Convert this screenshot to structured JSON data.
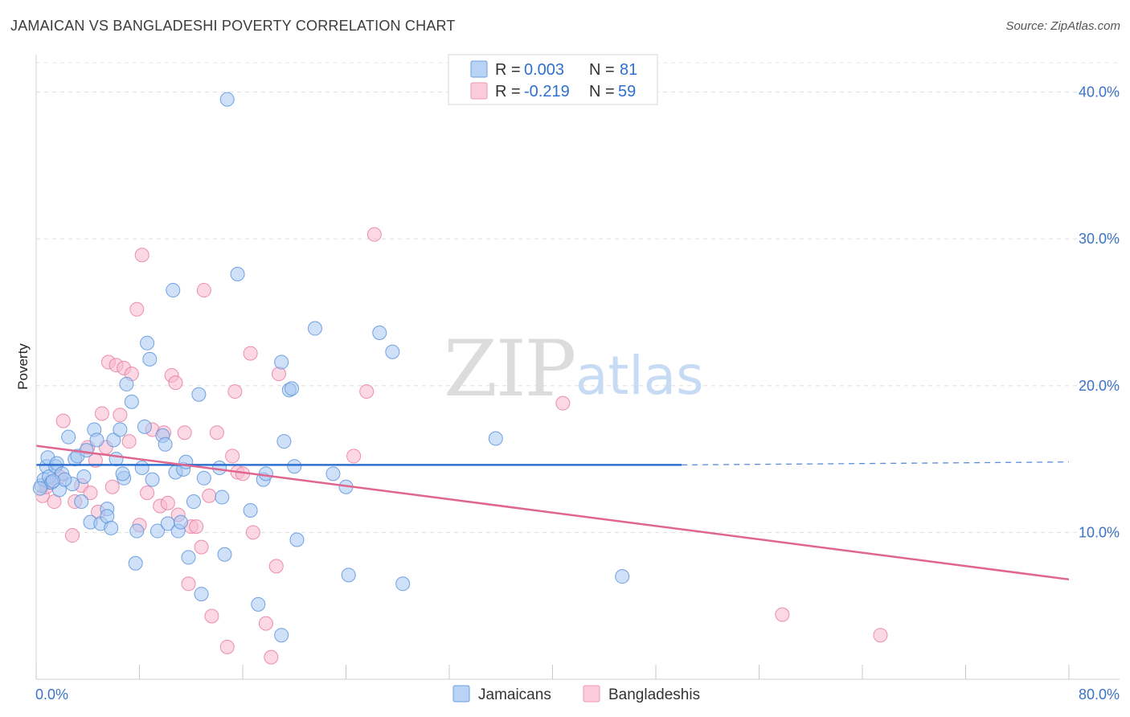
{
  "title": "JAMAICAN VS BANGLADESHI POVERTY CORRELATION CHART",
  "source": "Source: ZipAtlas.com",
  "watermark": {
    "zip": "ZIP",
    "atlas": "atlas"
  },
  "legend": {
    "rows": [
      {
        "r_label": "R =",
        "r_value": "0.003",
        "n_label": "N =",
        "n_value": "81",
        "color": "#a7c8f2"
      },
      {
        "r_label": "R =",
        "r_value": "-0.219",
        "n_label": "N =",
        "n_value": "59",
        "color": "#f8b8cd"
      }
    ]
  },
  "bottom_legend": [
    {
      "label": "Jamaicans",
      "color": "#a7c8f2"
    },
    {
      "label": "Bangladeshis",
      "color": "#f8b8cd"
    }
  ],
  "chart_data": {
    "type": "scatter",
    "title": "JAMAICAN VS BANGLADESHI POVERTY CORRELATION CHART",
    "xlabel": "",
    "ylabel": "Poverty",
    "xlim": [
      0,
      80
    ],
    "ylim": [
      0,
      42
    ],
    "x_tick_labels": [
      "0.0%",
      "80.0%"
    ],
    "y_ticks": [
      10,
      20,
      30,
      40
    ],
    "y_tick_labels": [
      "10.0%",
      "20.0%",
      "30.0%",
      "40.0%"
    ],
    "grid": true,
    "legend_position": "top-center",
    "series": [
      {
        "name": "Jamaicans",
        "color": "#5b93dc",
        "fill": "#a7c8f2",
        "trend": {
          "x0": 0,
          "y0": 14.6,
          "x1": 50,
          "y1": 14.6,
          "dashed_to_x": 80,
          "dashed_y": 14.8,
          "color": "#2f6fd0"
        },
        "points": [
          [
            0.4,
            13.2
          ],
          [
            0.6,
            13.6
          ],
          [
            0.8,
            14.5
          ],
          [
            0.9,
            15.1
          ],
          [
            1.0,
            13.8
          ],
          [
            1.2,
            13.4
          ],
          [
            1.5,
            14.5
          ],
          [
            1.6,
            14.7
          ],
          [
            1.8,
            12.9
          ],
          [
            2.0,
            14.0
          ],
          [
            2.5,
            16.5
          ],
          [
            2.8,
            13.3
          ],
          [
            3.0,
            15.0
          ],
          [
            3.2,
            15.2
          ],
          [
            3.5,
            12.1
          ],
          [
            3.7,
            13.8
          ],
          [
            3.9,
            15.6
          ],
          [
            4.2,
            10.7
          ],
          [
            4.5,
            17.0
          ],
          [
            4.7,
            16.3
          ],
          [
            5.0,
            10.6
          ],
          [
            5.5,
            11.6
          ],
          [
            5.5,
            11.1
          ],
          [
            5.8,
            10.3
          ],
          [
            6.0,
            16.3
          ],
          [
            6.2,
            15.0
          ],
          [
            6.5,
            17.0
          ],
          [
            6.8,
            13.7
          ],
          [
            7.0,
            20.1
          ],
          [
            7.4,
            18.9
          ],
          [
            7.7,
            7.9
          ],
          [
            7.8,
            10.1
          ],
          [
            8.2,
            14.4
          ],
          [
            8.4,
            17.2
          ],
          [
            8.6,
            22.9
          ],
          [
            8.8,
            21.8
          ],
          [
            9.0,
            13.6
          ],
          [
            9.4,
            10.1
          ],
          [
            9.8,
            16.6
          ],
          [
            10.0,
            16.0
          ],
          [
            10.2,
            10.6
          ],
          [
            10.6,
            26.5
          ],
          [
            10.8,
            14.1
          ],
          [
            11.0,
            10.1
          ],
          [
            11.2,
            10.7
          ],
          [
            11.4,
            14.3
          ],
          [
            11.6,
            14.8
          ],
          [
            11.8,
            8.3
          ],
          [
            12.2,
            12.1
          ],
          [
            12.6,
            19.4
          ],
          [
            12.8,
            5.8
          ],
          [
            13.0,
            13.7
          ],
          [
            14.2,
            14.4
          ],
          [
            14.4,
            12.4
          ],
          [
            14.6,
            8.5
          ],
          [
            14.8,
            39.5
          ],
          [
            15.6,
            27.6
          ],
          [
            16.6,
            11.5
          ],
          [
            17.2,
            5.1
          ],
          [
            17.6,
            13.6
          ],
          [
            17.8,
            14.0
          ],
          [
            19.0,
            21.6
          ],
          [
            19.2,
            16.2
          ],
          [
            19.6,
            19.7
          ],
          [
            19.8,
            19.8
          ],
          [
            20.0,
            14.5
          ],
          [
            20.2,
            9.5
          ],
          [
            19.0,
            3.0
          ],
          [
            21.6,
            23.9
          ],
          [
            23.0,
            14.0
          ],
          [
            24.0,
            13.1
          ],
          [
            24.2,
            7.1
          ],
          [
            26.6,
            23.6
          ],
          [
            27.6,
            22.3
          ],
          [
            28.4,
            6.5
          ],
          [
            35.6,
            16.4
          ],
          [
            45.4,
            7.0
          ],
          [
            2.2,
            13.6
          ],
          [
            1.3,
            13.5
          ],
          [
            6.7,
            14.0
          ],
          [
            0.3,
            13.0
          ]
        ]
      },
      {
        "name": "Bangladeshis",
        "color": "#e97ca1",
        "fill": "#f8b8cd",
        "trend": {
          "x0": 0,
          "y0": 15.9,
          "x1": 80,
          "y1": 6.8,
          "color": "#e0668f"
        },
        "points": [
          [
            0.5,
            12.5
          ],
          [
            0.8,
            13.1
          ],
          [
            1.0,
            13.4
          ],
          [
            1.4,
            12.1
          ],
          [
            1.8,
            13.8
          ],
          [
            2.1,
            17.6
          ],
          [
            2.8,
            9.8
          ],
          [
            3.0,
            12.1
          ],
          [
            3.5,
            13.2
          ],
          [
            4.0,
            15.8
          ],
          [
            4.2,
            12.7
          ],
          [
            4.6,
            14.9
          ],
          [
            4.8,
            11.4
          ],
          [
            5.1,
            18.1
          ],
          [
            5.4,
            15.8
          ],
          [
            5.6,
            21.6
          ],
          [
            5.9,
            13.1
          ],
          [
            6.2,
            21.4
          ],
          [
            6.5,
            18.0
          ],
          [
            6.8,
            21.2
          ],
          [
            7.2,
            16.2
          ],
          [
            7.4,
            20.8
          ],
          [
            7.8,
            25.2
          ],
          [
            8.0,
            10.5
          ],
          [
            8.2,
            28.9
          ],
          [
            8.6,
            12.7
          ],
          [
            9.0,
            17.0
          ],
          [
            9.6,
            11.8
          ],
          [
            9.9,
            16.8
          ],
          [
            10.2,
            12.0
          ],
          [
            10.5,
            20.7
          ],
          [
            10.8,
            20.2
          ],
          [
            11.0,
            11.2
          ],
          [
            11.5,
            16.8
          ],
          [
            11.8,
            6.5
          ],
          [
            12.0,
            10.4
          ],
          [
            12.8,
            9.0
          ],
          [
            13.4,
            12.5
          ],
          [
            13.6,
            4.3
          ],
          [
            14.0,
            16.8
          ],
          [
            14.8,
            2.2
          ],
          [
            15.2,
            15.2
          ],
          [
            15.4,
            19.6
          ],
          [
            15.6,
            14.1
          ],
          [
            16.0,
            14.0
          ],
          [
            16.6,
            22.2
          ],
          [
            16.8,
            10.0
          ],
          [
            17.8,
            3.8
          ],
          [
            18.2,
            1.5
          ],
          [
            18.6,
            7.7
          ],
          [
            18.8,
            20.8
          ],
          [
            24.6,
            15.2
          ],
          [
            25.6,
            19.6
          ],
          [
            26.2,
            30.3
          ],
          [
            13.0,
            26.5
          ],
          [
            40.8,
            18.8
          ],
          [
            57.8,
            4.4
          ],
          [
            65.4,
            3.0
          ],
          [
            12.4,
            10.4
          ]
        ]
      }
    ]
  }
}
